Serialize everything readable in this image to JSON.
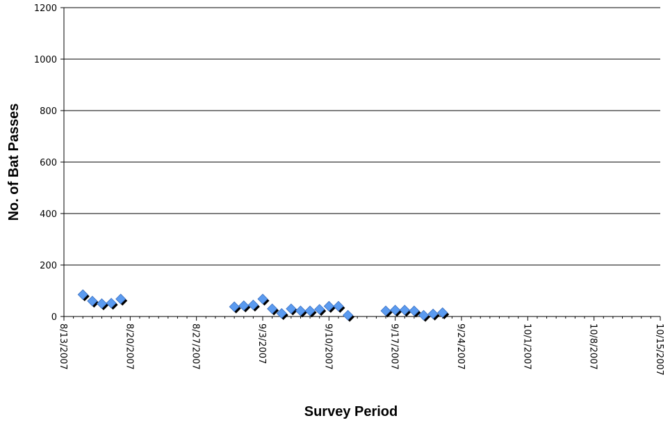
{
  "chart_data": {
    "type": "scatter",
    "title": "",
    "xlabel": "Survey Period",
    "ylabel": "No. of Bat Passes",
    "ylim": [
      0,
      1200
    ],
    "yticks": [
      0,
      200,
      400,
      600,
      800,
      1000,
      1200
    ],
    "xlim": [
      "2007-08-13",
      "2007-10-15"
    ],
    "xtick_labels": [
      "8/13/2007",
      "8/20/2007",
      "8/27/2007",
      "9/3/2007",
      "9/10/2007",
      "9/17/2007",
      "9/24/2007",
      "10/1/2007",
      "10/8/2007",
      "10/15/2007"
    ],
    "grid": "horizontal",
    "legend": "none",
    "marker": "diamond",
    "marker_color": "#5b9bf0",
    "series": [
      {
        "points": [
          [
            "2007-08-15",
            85
          ],
          [
            "2007-08-16",
            60
          ],
          [
            "2007-08-17",
            50
          ],
          [
            "2007-08-18",
            52
          ],
          [
            "2007-08-19",
            68
          ],
          [
            "2007-08-31",
            38
          ],
          [
            "2007-09-01",
            42
          ],
          [
            "2007-09-02",
            45
          ],
          [
            "2007-09-03",
            68
          ],
          [
            "2007-09-04",
            30
          ],
          [
            "2007-09-05",
            12
          ],
          [
            "2007-09-06",
            30
          ],
          [
            "2007-09-07",
            22
          ],
          [
            "2007-09-08",
            22
          ],
          [
            "2007-09-09",
            28
          ],
          [
            "2007-09-10",
            40
          ],
          [
            "2007-09-11",
            40
          ],
          [
            "2007-09-12",
            5
          ],
          [
            "2007-09-16",
            22
          ],
          [
            "2007-09-17",
            25
          ],
          [
            "2007-09-18",
            25
          ],
          [
            "2007-09-19",
            22
          ],
          [
            "2007-09-20",
            5
          ],
          [
            "2007-09-21",
            10
          ],
          [
            "2007-09-22",
            15
          ]
        ]
      }
    ]
  }
}
